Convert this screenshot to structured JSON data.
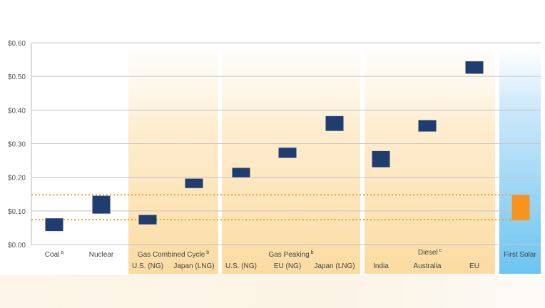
{
  "chart_data": {
    "type": "floating-bar",
    "title": "",
    "xlabel": "",
    "ylabel": "",
    "ylim": [
      0,
      0.6
    ],
    "yticks": [
      "$0.00",
      "$0.10",
      "$0.20",
      "$0.30",
      "$0.40",
      "$0.50",
      "$0.60"
    ],
    "grid": true,
    "reference_lines": [
      0.074,
      0.148
    ],
    "groups": [
      {
        "id": "coal",
        "label": "Coal",
        "sup": "a",
        "style": "plain"
      },
      {
        "id": "nuclear",
        "label": "Nuclear",
        "sup": "",
        "style": "plain"
      },
      {
        "id": "gas-combined-cycle",
        "label": "Gas Combined Cycle",
        "sup": "b",
        "style": "warm"
      },
      {
        "id": "gas-peaking",
        "label": "Gas Peaking",
        "sup": "b",
        "style": "warm"
      },
      {
        "id": "diesel",
        "label": "Diesel",
        "sup": "c",
        "style": "warm"
      },
      {
        "id": "first-solar",
        "label": "First Solar",
        "sup": "",
        "style": "cool"
      }
    ],
    "categories": [
      {
        "group": 0,
        "label": "",
        "low": 0.04,
        "high": 0.078,
        "color": "#1f3d6e"
      },
      {
        "group": 1,
        "label": "",
        "low": 0.092,
        "high": 0.145,
        "color": "#1f3d6e"
      },
      {
        "group": 2,
        "label": "U.S. (NG)",
        "low": 0.06,
        "high": 0.088,
        "color": "#1f3d6e"
      },
      {
        "group": 2,
        "label": "Japan (LNG)",
        "low": 0.168,
        "high": 0.196,
        "color": "#1f3d6e"
      },
      {
        "group": 3,
        "label": "U.S. (NG)",
        "low": 0.2,
        "high": 0.228,
        "color": "#1f3d6e"
      },
      {
        "group": 3,
        "label": "EU (NG)",
        "low": 0.258,
        "high": 0.288,
        "color": "#1f3d6e"
      },
      {
        "group": 3,
        "label": "Japan (LNG)",
        "low": 0.338,
        "high": 0.382,
        "color": "#1f3d6e"
      },
      {
        "group": 4,
        "label": "India",
        "low": 0.23,
        "high": 0.278,
        "color": "#1f3d6e"
      },
      {
        "group": 4,
        "label": "Australia",
        "low": 0.336,
        "high": 0.37,
        "color": "#1f3d6e"
      },
      {
        "group": 4,
        "label": "EU",
        "low": 0.508,
        "high": 0.545,
        "color": "#1f3d6e"
      },
      {
        "group": 5,
        "label": "",
        "low": 0.072,
        "high": 0.148,
        "color": "#f7941d"
      }
    ]
  }
}
